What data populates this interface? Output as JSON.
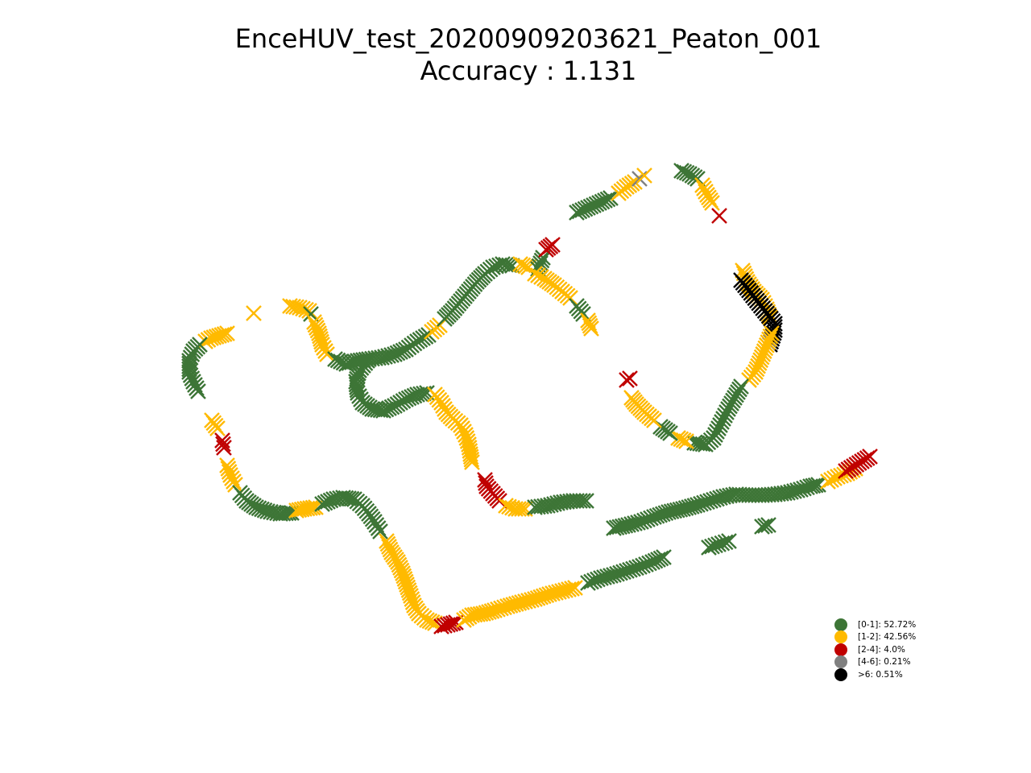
{
  "title": {
    "line1": "EnceHUV_test_20200909203621_Peaton_001",
    "line2": "Accuracy : 1.131"
  },
  "colors": {
    "band_0_1": "#3d7536",
    "band_1_2": "#ffba00",
    "band_2_4": "#c00000",
    "band_4_6": "#808080",
    "band_gt6": "#000000"
  },
  "chart_data": {
    "type": "scatter",
    "marker": "x",
    "axes_visible": false,
    "grid": false,
    "legend_position": "lower-right",
    "legend": [
      {
        "label": "[0-1]: 52.72%",
        "color": "#3d7536"
      },
      {
        "label": "[1-2]: 42.56%",
        "color": "#ffba00"
      },
      {
        "label": "[2-4]: 4.0%",
        "color": "#c00000"
      },
      {
        "label": "[4-6]: 0.21%",
        "color": "#808080"
      },
      {
        "label": ">6: 0.51%",
        "color": "#000000"
      }
    ],
    "trajectory_segments": [
      {
        "series": "[1-2]",
        "points": [
          [
            315,
            389
          ]
        ]
      },
      {
        "series": "[1-2]",
        "points": [
          [
            282,
            414
          ],
          [
            272,
            417
          ],
          [
            262,
            420
          ],
          [
            255,
            424
          ]
        ]
      },
      {
        "series": "[0-1]",
        "points": [
          [
            248,
            428
          ],
          [
            240,
            436
          ],
          [
            235,
            448
          ],
          [
            235,
            462
          ],
          [
            240,
            474
          ],
          [
            246,
            486
          ]
        ]
      },
      {
        "series": "[1-2]",
        "points": [
          [
            263,
            522
          ],
          [
            270,
            532
          ]
        ]
      },
      {
        "series": "[2-4]",
        "points": [
          [
            276,
            547
          ],
          [
            278,
            556
          ]
        ]
      },
      {
        "series": "[1-2]",
        "points": [
          [
            282,
            578
          ],
          [
            286,
            590
          ],
          [
            292,
            602
          ]
        ]
      },
      {
        "series": "[0-1]",
        "points": [
          [
            298,
            612
          ],
          [
            306,
            622
          ],
          [
            318,
            630
          ],
          [
            332,
            635
          ],
          [
            348,
            638
          ],
          [
            362,
            637
          ]
        ]
      },
      {
        "series": "[1-2]",
        "points": [
          [
            368,
            634
          ],
          [
            378,
            632
          ],
          [
            392,
            630
          ]
        ]
      },
      {
        "series": "[0-1]",
        "points": [
          [
            400,
            626
          ],
          [
            414,
            620
          ],
          [
            426,
            618
          ],
          [
            440,
            620
          ],
          [
            450,
            628
          ],
          [
            458,
            638
          ],
          [
            465,
            648
          ],
          [
            472,
            660
          ]
        ]
      },
      {
        "series": "[1-2]",
        "points": [
          [
            480,
            672
          ],
          [
            486,
            686
          ],
          [
            494,
            698
          ],
          [
            500,
            712
          ],
          [
            505,
            726
          ],
          [
            510,
            740
          ],
          [
            514,
            752
          ],
          [
            520,
            762
          ],
          [
            530,
            770
          ],
          [
            540,
            774
          ]
        ]
      },
      {
        "series": "[2-4]",
        "points": [
          [
            548,
            778
          ],
          [
            556,
            776
          ],
          [
            566,
            773
          ]
        ]
      },
      {
        "series": "[1-2]",
        "points": [
          [
            576,
            770
          ],
          [
            586,
            764
          ],
          [
            600,
            762
          ],
          [
            614,
            758
          ],
          [
            630,
            753
          ],
          [
            648,
            748
          ],
          [
            664,
            744
          ],
          [
            682,
            738
          ],
          [
            698,
            734
          ],
          [
            714,
            730
          ]
        ]
      },
      {
        "series": "[0-1]",
        "points": [
          [
            730,
            724
          ],
          [
            746,
            718
          ],
          [
            762,
            714
          ],
          [
            778,
            709
          ],
          [
            794,
            704
          ],
          [
            810,
            698
          ],
          [
            824,
            692
          ]
        ]
      },
      {
        "series": "[0-1]",
        "points": [
          [
            880,
            680
          ],
          [
            892,
            676
          ],
          [
            905,
            672
          ]
        ]
      },
      {
        "series": "[0-1]",
        "points": [
          [
            762,
            656
          ],
          [
            780,
            652
          ],
          [
            796,
            648
          ],
          [
            812,
            642
          ],
          [
            830,
            636
          ],
          [
            848,
            632
          ],
          [
            866,
            627
          ],
          [
            882,
            622
          ],
          [
            898,
            617
          ],
          [
            914,
            614
          ],
          [
            930,
            615
          ],
          [
            946,
            615
          ],
          [
            962,
            614
          ],
          [
            978,
            612
          ],
          [
            994,
            608
          ],
          [
            1006,
            604
          ],
          [
            1016,
            602
          ]
        ]
      },
      {
        "series": "[0-1]",
        "points": [
          [
            946,
            654
          ],
          [
            954,
            652
          ]
        ]
      },
      {
        "series": "[1-2]",
        "points": [
          [
            1028,
            598
          ],
          [
            1040,
            592
          ],
          [
            1052,
            588
          ],
          [
            1062,
            582
          ]
        ]
      },
      {
        "series": "[2-4]",
        "points": [
          [
            1050,
            585
          ],
          [
            1080,
            567
          ]
        ]
      },
      {
        "series": "[1-2]",
        "points": [
          [
            360,
            380
          ],
          [
            372,
            382
          ],
          [
            384,
            386
          ]
        ]
      },
      {
        "series": "[0-1]",
        "points": [
          [
            386,
            390
          ]
        ]
      },
      {
        "series": "[1-2]",
        "points": [
          [
            390,
            400
          ],
          [
            396,
            414
          ],
          [
            400,
            428
          ],
          [
            406,
            440
          ]
        ]
      },
      {
        "series": "[0-1]",
        "points": [
          [
            416,
            446
          ],
          [
            430,
            452
          ],
          [
            444,
            448
          ],
          [
            458,
            446
          ],
          [
            474,
            444
          ],
          [
            490,
            440
          ],
          [
            504,
            434
          ],
          [
            518,
            424
          ],
          [
            532,
            416
          ]
        ]
      },
      {
        "series": "[1-2]",
        "points": [
          [
            536,
            412
          ],
          [
            546,
            404
          ]
        ]
      },
      {
        "series": "[0-1]",
        "points": [
          [
            552,
            396
          ],
          [
            562,
            386
          ],
          [
            572,
            374
          ],
          [
            582,
            362
          ],
          [
            592,
            350
          ],
          [
            602,
            340
          ],
          [
            612,
            332
          ],
          [
            624,
            328
          ],
          [
            636,
            330
          ]
        ]
      },
      {
        "series": "[1-2]",
        "points": [
          [
            646,
            328
          ],
          [
            656,
            332
          ]
        ]
      },
      {
        "series": "[0-1]",
        "points": [
          [
            668,
            334
          ],
          [
            674,
            320
          ]
        ]
      },
      {
        "series": "[2-4]",
        "points": [
          [
            678,
            310
          ],
          [
            686,
            304
          ]
        ]
      },
      {
        "series": "[1-2]",
        "points": [
          [
            664,
            340
          ],
          [
            676,
            346
          ],
          [
            688,
            354
          ],
          [
            698,
            362
          ],
          [
            708,
            370
          ]
        ]
      },
      {
        "series": "[0-1]",
        "points": [
          [
            716,
            380
          ],
          [
            724,
            390
          ]
        ]
      },
      {
        "series": "[1-2]",
        "points": [
          [
            730,
            398
          ],
          [
            734,
            408
          ]
        ]
      },
      {
        "series": "[0-1]",
        "points": [
          [
            456,
            448
          ],
          [
            446,
            460
          ],
          [
            442,
            474
          ],
          [
            444,
            488
          ],
          [
            450,
            500
          ],
          [
            462,
            508
          ],
          [
            476,
            510
          ],
          [
            490,
            504
          ],
          [
            504,
            496
          ],
          [
            518,
            490
          ],
          [
            530,
            488
          ]
        ]
      },
      {
        "series": "[1-2]",
        "points": [
          [
            540,
            490
          ],
          [
            548,
            500
          ],
          [
            554,
            512
          ],
          [
            562,
            520
          ],
          [
            572,
            528
          ],
          [
            578,
            540
          ],
          [
            582,
            552
          ],
          [
            584,
            564
          ],
          [
            586,
            574
          ]
        ]
      },
      {
        "series": "[2-4]",
        "points": [
          [
            602,
            596
          ],
          [
            604,
            604
          ],
          [
            620,
            622
          ]
        ]
      },
      {
        "series": "[1-2]",
        "points": [
          [
            628,
            628
          ],
          [
            640,
            632
          ],
          [
            652,
            632
          ]
        ]
      },
      {
        "series": "[0-1]",
        "points": [
          [
            664,
            630
          ],
          [
            680,
            628
          ],
          [
            696,
            624
          ],
          [
            712,
            622
          ],
          [
            728,
            622
          ]
        ]
      },
      {
        "series": "[0-1]",
        "points": [
          [
            716,
            264
          ],
          [
            730,
            258
          ],
          [
            744,
            252
          ],
          [
            758,
            246
          ]
        ]
      },
      {
        "series": "[1-2]",
        "points": [
          [
            768,
            240
          ],
          [
            778,
            232
          ],
          [
            788,
            226
          ]
        ]
      },
      {
        "series": "[4-6]",
        "points": [
          [
            794,
            222
          ]
        ]
      },
      {
        "series": "[1-2]",
        "points": [
          [
            800,
            218
          ]
        ]
      },
      {
        "series": "[0-1]",
        "points": [
          [
            846,
            212
          ],
          [
            856,
            216
          ],
          [
            866,
            222
          ]
        ]
      },
      {
        "series": "[1-2]",
        "points": [
          [
            872,
            230
          ],
          [
            878,
            242
          ],
          [
            884,
            252
          ]
        ]
      },
      {
        "series": "[2-4]",
        "points": [
          [
            893,
            268
          ]
        ]
      },
      {
        "series": "[1-2]",
        "points": [
          [
            922,
            336
          ],
          [
            928,
            350
          ],
          [
            936,
            362
          ],
          [
            946,
            372
          ],
          [
            952,
            384
          ],
          [
            956,
            394
          ]
        ]
      },
      {
        "series": ">6",
        "points": [
          [
            920,
            348
          ],
          [
            962,
            402
          ],
          [
            962,
            410
          ],
          [
            956,
            428
          ]
        ]
      },
      {
        "series": "[1-2]",
        "points": [
          [
            958,
            414
          ],
          [
            938,
            462
          ],
          [
            930,
            472
          ]
        ]
      },
      {
        "series": "[0-1]",
        "points": [
          [
            920,
            480
          ],
          [
            912,
            494
          ],
          [
            904,
            508
          ],
          [
            898,
            520
          ],
          [
            892,
            532
          ],
          [
            886,
            544
          ],
          [
            876,
            552
          ],
          [
            862,
            550
          ]
        ]
      },
      {
        "series": "[1-2]",
        "points": [
          [
            852,
            548
          ],
          [
            842,
            544
          ]
        ]
      },
      {
        "series": "[0-1]",
        "points": [
          [
            832,
            538
          ],
          [
            820,
            530
          ]
        ]
      },
      {
        "series": "[1-2]",
        "points": [
          [
            812,
            522
          ],
          [
            800,
            512
          ],
          [
            790,
            502
          ],
          [
            784,
            494
          ]
        ]
      },
      {
        "series": "[2-4]",
        "points": [
          [
            778,
            472
          ],
          [
            782,
            470
          ]
        ]
      }
    ]
  }
}
